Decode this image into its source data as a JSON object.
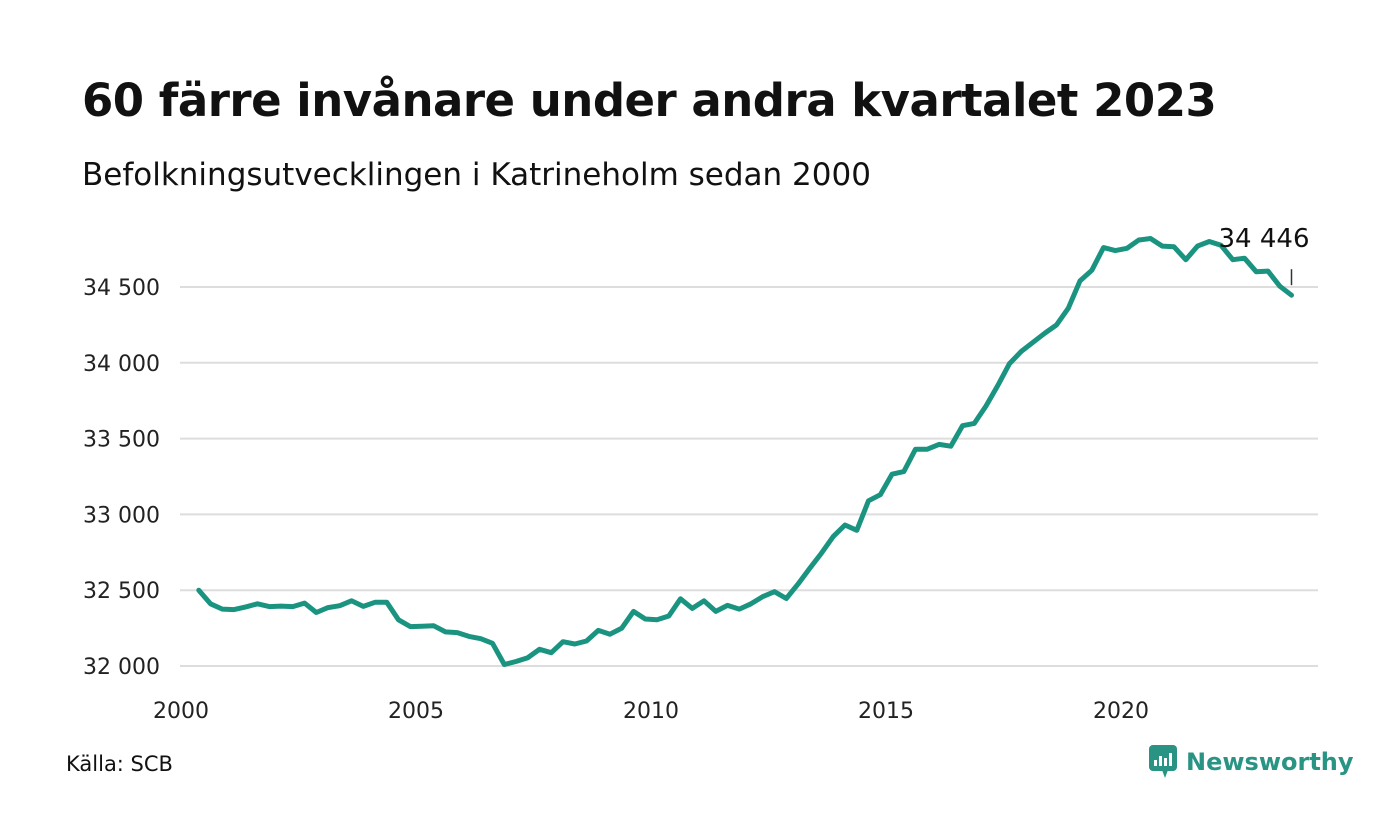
{
  "header": {
    "title": "60 färre invånare under andra kvartalet 2023",
    "subtitle": "Befolkningsutvecklingen i Katrineholm sedan 2000"
  },
  "footer": {
    "source": "Källa: SCB",
    "brand": "Newsworthy"
  },
  "colors": {
    "line": "#1a9481",
    "grid": "#dddddd",
    "brand": "#2a9484"
  },
  "icons": {
    "logo": "newsworthy-logo-icon"
  },
  "chart_data": {
    "type": "line",
    "title": "60 färre invånare under andra kvartalet 2023",
    "subtitle": "Befolkningsutvecklingen i Katrineholm sedan 2000",
    "xlim": [
      2000,
      2024
    ],
    "ylim": [
      31900,
      34900
    ],
    "xticks": [
      {
        "value": 2000,
        "label": "2000"
      },
      {
        "value": 2005,
        "label": "2005"
      },
      {
        "value": 2010,
        "label": "2010"
      },
      {
        "value": 2015,
        "label": "2015"
      },
      {
        "value": 2020,
        "label": "2020"
      }
    ],
    "yticks": [
      {
        "value": 32000,
        "label": "32 000"
      },
      {
        "value": 32500,
        "label": "32 500"
      },
      {
        "value": 33000,
        "label": "33 000"
      },
      {
        "value": 33500,
        "label": "33 500"
      },
      {
        "value": 34000,
        "label": "34 000"
      },
      {
        "value": 34500,
        "label": "34 500"
      }
    ],
    "grid": "horizontal",
    "end_label": "34 446",
    "series": [
      {
        "x": [
          2000.25,
          2000.5,
          2000.75,
          2001.0,
          2001.25,
          2001.5,
          2001.75,
          2002.0,
          2002.25,
          2002.5,
          2002.75,
          2003.0,
          2003.25,
          2003.5,
          2003.75,
          2004.0,
          2004.25,
          2004.5,
          2004.75,
          2005.0,
          2005.25,
          2005.5,
          2005.75,
          2006.0,
          2006.25,
          2006.5,
          2006.75,
          2007.0,
          2007.25,
          2007.5,
          2007.75,
          2008.0,
          2008.25,
          2008.5,
          2008.75,
          2009.0,
          2009.25,
          2009.5,
          2009.75,
          2010.0,
          2010.25,
          2010.5,
          2010.75,
          2011.0,
          2011.25,
          2011.5,
          2011.75,
          2012.0,
          2012.25,
          2012.5,
          2012.75,
          2013.0,
          2013.25,
          2013.5,
          2013.75,
          2014.0,
          2014.25,
          2014.5,
          2014.75,
          2015.0,
          2015.25,
          2015.5,
          2015.75,
          2016.0,
          2016.25,
          2016.5,
          2016.75,
          2017.0,
          2017.25,
          2017.5,
          2017.75,
          2018.0,
          2018.25,
          2018.5,
          2018.75,
          2019.0,
          2019.25,
          2019.5,
          2019.75,
          2020.0,
          2020.25,
          2020.5,
          2020.75,
          2021.0,
          2021.25,
          2021.5,
          2021.75,
          2022.0,
          2022.25,
          2022.5,
          2022.75,
          2023.0,
          2023.25,
          2023.5
        ],
        "values": [
          32500,
          32410,
          32375,
          32372,
          32390,
          32410,
          32392,
          32395,
          32392,
          32415,
          32353,
          32385,
          32398,
          32430,
          32393,
          32420,
          32420,
          32305,
          32260,
          32262,
          32265,
          32225,
          32220,
          32195,
          32180,
          32150,
          32010,
          32030,
          32055,
          32110,
          32088,
          32160,
          32145,
          32165,
          32235,
          32210,
          32250,
          32360,
          32310,
          32305,
          32330,
          32443,
          32380,
          32430,
          32360,
          32400,
          32375,
          32410,
          32458,
          32490,
          32445,
          32540,
          32645,
          32745,
          32855,
          32930,
          32895,
          33090,
          33130,
          33265,
          33282,
          33430,
          33430,
          33462,
          33450,
          33585,
          33600,
          33715,
          33850,
          33995,
          34075,
          34135,
          34195,
          34250,
          34360,
          34540,
          34610,
          34760,
          34740,
          34755,
          34810,
          34820,
          34770,
          34765,
          34680,
          34770,
          34800,
          34775,
          34680,
          34690,
          34600,
          34605,
          34505,
          34446
        ]
      }
    ]
  }
}
